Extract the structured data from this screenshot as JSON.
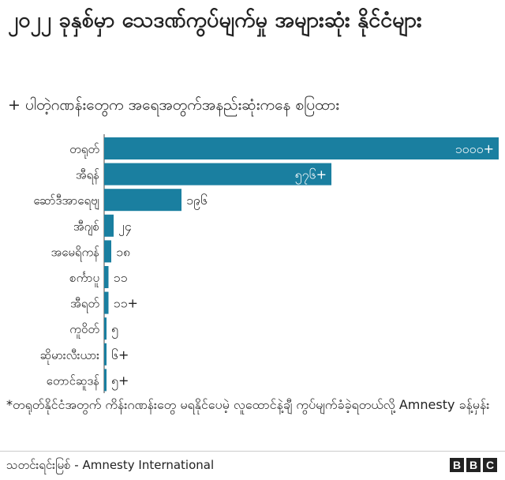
{
  "header": {
    "title": "၂၀၂၂ ခုနှစ်မှာ သေဒဏ်ကွပ်မျက်မှု အများဆုံး နိုင်ငံများ",
    "subtitle": "+ ပါတဲ့ဂဏန်းတွေက အရေအတွက်အနည်းဆုံးကနေ စပြထား"
  },
  "chart_data": {
    "type": "bar",
    "orientation": "horizontal",
    "categories": [
      "တရုတ်",
      "အီရန်",
      "ဆော်ဒီအာရေဗျ",
      "အီဂျစ်",
      "အမေရိကန်",
      "စင်္ကာပူ",
      "အီရတ်",
      "ကူဝိတ်",
      "ဆိုမားလီးယား",
      "တောင်ဆူဒန်"
    ],
    "values": [
      1000,
      576,
      196,
      24,
      18,
      11,
      11,
      5,
      6,
      5
    ],
    "value_labels": [
      "၁၀၀၀+",
      "၅၇၆+",
      "၁၉၆",
      "၂၄",
      "၁၈",
      "၁၁",
      "၁၁+",
      "၅",
      "၆+",
      "၅+"
    ],
    "xlim": [
      0,
      1000
    ],
    "grid": false,
    "bar_color": "#1a7fa0",
    "label_inside_color": "#ffffff",
    "label_outside_color": "#222222"
  },
  "footnote": "*တရုတ်နိုင်ငံအတွက် ကိန်းဂဏန်းတွေ မရနိုင်ပေမဲ့ လူထောင်နဲ့ချီ ကွပ်မျက်ခံခဲ့ရတယ်လို့ Amnesty ခန့်မှန်း",
  "footer": {
    "source": "သတင်းရင်းမြစ် - Amnesty International",
    "logo": [
      "B",
      "B",
      "C"
    ]
  }
}
